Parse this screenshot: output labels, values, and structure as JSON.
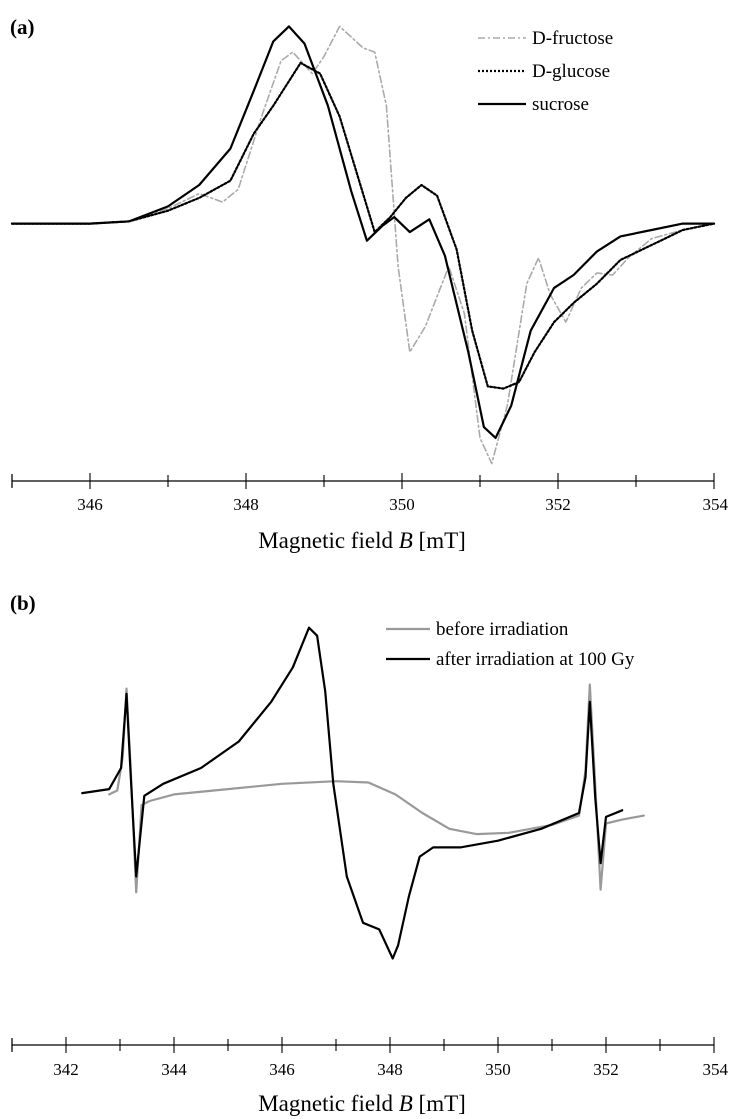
{
  "chart_data": [
    {
      "panel": "(a)",
      "type": "line",
      "xlabel": "Magnetic field B [mT]",
      "xlabel_parts": [
        "Magnetic field ",
        "B",
        " [mT]"
      ],
      "xlim": [
        345,
        354
      ],
      "xticks": [
        346,
        348,
        350,
        352,
        354
      ],
      "ylabel": "",
      "yaxis_shown": false,
      "ylim": [
        -1.15,
        0.95
      ],
      "grid": false,
      "legend_position": "top-right",
      "series": [
        {
          "name": "D-fructose",
          "color": "#aaaaaa",
          "dash": "dash-dot",
          "points": [
            [
              345,
              0
            ],
            [
              346,
              0.0
            ],
            [
              346.5,
              0.01
            ],
            [
              347,
              0.07
            ],
            [
              347.4,
              0.14
            ],
            [
              347.7,
              0.1
            ],
            [
              347.9,
              0.16
            ],
            [
              348.2,
              0.5
            ],
            [
              348.45,
              0.76
            ],
            [
              348.6,
              0.8
            ],
            [
              348.85,
              0.7
            ],
            [
              349.0,
              0.78
            ],
            [
              349.2,
              0.92
            ],
            [
              349.35,
              0.87
            ],
            [
              349.5,
              0.82
            ],
            [
              349.65,
              0.8
            ],
            [
              349.8,
              0.55
            ],
            [
              349.95,
              -0.2
            ],
            [
              350.1,
              -0.6
            ],
            [
              350.3,
              -0.48
            ],
            [
              350.6,
              -0.2
            ],
            [
              350.8,
              -0.42
            ],
            [
              351.0,
              -1.0
            ],
            [
              351.15,
              -1.12
            ],
            [
              351.35,
              -0.85
            ],
            [
              351.6,
              -0.28
            ],
            [
              351.75,
              -0.16
            ],
            [
              351.9,
              -0.33
            ],
            [
              352.1,
              -0.46
            ],
            [
              352.3,
              -0.3
            ],
            [
              352.5,
              -0.23
            ],
            [
              352.7,
              -0.24
            ],
            [
              352.9,
              -0.16
            ],
            [
              353.2,
              -0.07
            ],
            [
              353.6,
              -0.03
            ],
            [
              354,
              0
            ]
          ]
        },
        {
          "name": "D-glucose",
          "color": "#000000",
          "dash": "dotted",
          "points": [
            [
              345,
              0
            ],
            [
              346,
              0.0
            ],
            [
              346.5,
              0.01
            ],
            [
              347,
              0.06
            ],
            [
              347.4,
              0.12
            ],
            [
              347.8,
              0.2
            ],
            [
              348.1,
              0.42
            ],
            [
              348.35,
              0.55
            ],
            [
              348.7,
              0.75
            ],
            [
              348.95,
              0.7
            ],
            [
              349.2,
              0.5
            ],
            [
              349.45,
              0.2
            ],
            [
              349.65,
              -0.04
            ],
            [
              349.85,
              0.03
            ],
            [
              350.05,
              0.12
            ],
            [
              350.25,
              0.18
            ],
            [
              350.45,
              0.13
            ],
            [
              350.7,
              -0.12
            ],
            [
              350.9,
              -0.5
            ],
            [
              351.1,
              -0.76
            ],
            [
              351.3,
              -0.77
            ],
            [
              351.5,
              -0.74
            ],
            [
              351.7,
              -0.6
            ],
            [
              351.95,
              -0.46
            ],
            [
              352.2,
              -0.37
            ],
            [
              352.5,
              -0.28
            ],
            [
              352.8,
              -0.17
            ],
            [
              353.2,
              -0.1
            ],
            [
              353.6,
              -0.03
            ],
            [
              354,
              0
            ]
          ]
        },
        {
          "name": "sucrose",
          "color": "#000000",
          "dash": "solid",
          "points": [
            [
              345,
              0
            ],
            [
              346,
              0.0
            ],
            [
              346.5,
              0.01
            ],
            [
              347,
              0.08
            ],
            [
              347.4,
              0.18
            ],
            [
              347.8,
              0.35
            ],
            [
              348.1,
              0.62
            ],
            [
              348.35,
              0.85
            ],
            [
              348.55,
              0.92
            ],
            [
              348.75,
              0.84
            ],
            [
              349.05,
              0.55
            ],
            [
              349.35,
              0.15
            ],
            [
              349.55,
              -0.08
            ],
            [
              349.75,
              -0.01
            ],
            [
              349.9,
              0.03
            ],
            [
              350.1,
              -0.04
            ],
            [
              350.35,
              0.02
            ],
            [
              350.55,
              -0.15
            ],
            [
              350.85,
              -0.6
            ],
            [
              351.05,
              -0.95
            ],
            [
              351.2,
              -1.0
            ],
            [
              351.4,
              -0.85
            ],
            [
              351.65,
              -0.5
            ],
            [
              351.95,
              -0.3
            ],
            [
              352.2,
              -0.24
            ],
            [
              352.5,
              -0.13
            ],
            [
              352.8,
              -0.06
            ],
            [
              353.2,
              -0.03
            ],
            [
              353.6,
              0
            ],
            [
              354,
              0
            ]
          ]
        }
      ]
    },
    {
      "panel": "(b)",
      "type": "line",
      "xlabel": "Magnetic field B [mT]",
      "xlabel_parts": [
        "Magnetic field ",
        "B",
        " [mT]"
      ],
      "xlim": [
        341,
        354
      ],
      "xticks": [
        342,
        344,
        346,
        348,
        350,
        352,
        354
      ],
      "ylabel": "",
      "yaxis_shown": false,
      "ylim": [
        -1.7,
        1.55
      ],
      "grid": false,
      "legend_position": "top-right",
      "series": [
        {
          "name": "before irradiation",
          "color": "#999999",
          "dash": "solid",
          "points": [
            [
              342.8,
              0.02
            ],
            [
              342.95,
              0.05
            ],
            [
              343.05,
              0.3
            ],
            [
              343.12,
              0.82
            ],
            [
              343.2,
              0.2
            ],
            [
              343.3,
              -0.72
            ],
            [
              343.4,
              -0.06
            ],
            [
              343.55,
              -0.03
            ],
            [
              344.0,
              0.02
            ],
            [
              345.0,
              0.06
            ],
            [
              346.0,
              0.1
            ],
            [
              347.0,
              0.12
            ],
            [
              347.6,
              0.11
            ],
            [
              348.1,
              0.02
            ],
            [
              348.6,
              -0.12
            ],
            [
              349.1,
              -0.24
            ],
            [
              349.6,
              -0.28
            ],
            [
              350.2,
              -0.27
            ],
            [
              351.0,
              -0.21
            ],
            [
              351.5,
              -0.14
            ],
            [
              351.62,
              0.2
            ],
            [
              351.7,
              0.85
            ],
            [
              351.8,
              0.1
            ],
            [
              351.9,
              -0.7
            ],
            [
              352.0,
              -0.2
            ],
            [
              352.3,
              -0.17
            ],
            [
              352.7,
              -0.14
            ]
          ]
        },
        {
          "name": "after irradiation at 100 Gy",
          "color": "#000000",
          "dash": "solid",
          "points": [
            [
              342.3,
              0.03
            ],
            [
              342.8,
              0.06
            ],
            [
              343.02,
              0.22
            ],
            [
              343.12,
              0.78
            ],
            [
              343.2,
              0.15
            ],
            [
              343.3,
              -0.6
            ],
            [
              343.45,
              0.01
            ],
            [
              343.8,
              0.1
            ],
            [
              344.5,
              0.22
            ],
            [
              345.2,
              0.42
            ],
            [
              345.8,
              0.72
            ],
            [
              346.2,
              0.98
            ],
            [
              346.5,
              1.28
            ],
            [
              346.65,
              1.22
            ],
            [
              346.8,
              0.8
            ],
            [
              346.95,
              0.1
            ],
            [
              347.2,
              -0.6
            ],
            [
              347.5,
              -0.95
            ],
            [
              347.8,
              -1.0
            ],
            [
              348.05,
              -1.22
            ],
            [
              348.15,
              -1.12
            ],
            [
              348.35,
              -0.75
            ],
            [
              348.55,
              -0.45
            ],
            [
              348.8,
              -0.38
            ],
            [
              349.3,
              -0.38
            ],
            [
              350.0,
              -0.33
            ],
            [
              350.8,
              -0.24
            ],
            [
              351.5,
              -0.12
            ],
            [
              351.62,
              0.15
            ],
            [
              351.7,
              0.72
            ],
            [
              351.8,
              0.0
            ],
            [
              351.9,
              -0.5
            ],
            [
              352.0,
              -0.15
            ],
            [
              352.3,
              -0.1
            ]
          ]
        }
      ]
    }
  ]
}
